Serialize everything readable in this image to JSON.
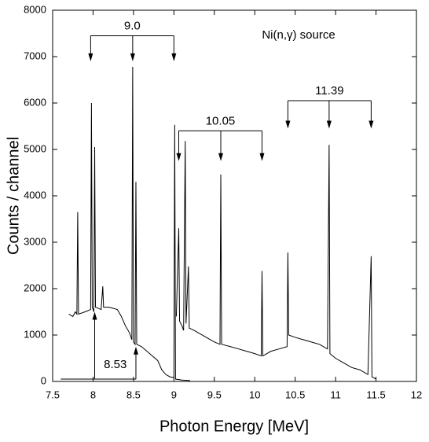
{
  "chart_data": {
    "type": "line",
    "annotation": "Ni(n,γ) source",
    "x_label": "Photon Energy [MeV]",
    "y_label": "Counts / channel",
    "xlim": [
      7.5,
      12
    ],
    "xticks": [
      7.5,
      8,
      8.5,
      9,
      9.5,
      10,
      10.5,
      11,
      11.5,
      12
    ],
    "ylim": [
      0,
      8000
    ],
    "yticks": [
      0,
      1000,
      2000,
      3000,
      4000,
      5000,
      6000,
      7000,
      8000
    ],
    "grid": false,
    "series": [
      {
        "color": "#000000",
        "x": [
          7.7,
          7.75,
          7.78,
          7.8,
          7.81,
          7.82,
          7.9,
          7.97,
          7.98,
          7.99,
          8.01,
          8.02,
          8.03,
          8.1,
          8.12,
          8.13,
          8.2,
          8.3,
          8.35,
          8.4,
          8.45,
          8.48,
          8.49,
          8.5,
          8.52,
          8.53,
          8.54,
          8.6,
          8.7,
          8.8,
          8.85,
          8.9,
          8.95,
          9.0,
          9.01,
          9.02,
          9.1,
          9.2
        ],
        "values": [
          1450,
          1400,
          1500,
          1450,
          3650,
          1450,
          1500,
          1550,
          6000,
          1600,
          1500,
          5050,
          1600,
          1550,
          2050,
          1600,
          1600,
          1550,
          1400,
          1200,
          1050,
          900,
          6780,
          850,
          800,
          4300,
          800,
          750,
          600,
          450,
          250,
          150,
          100,
          80,
          5530,
          50,
          30,
          20
        ]
      },
      {
        "color": "#000000",
        "x": [
          9.03,
          9.06,
          9.07,
          9.1,
          9.12,
          9.14,
          9.15,
          9.18,
          9.19,
          9.25,
          9.3,
          9.4,
          9.5,
          9.57,
          9.58,
          9.59,
          9.7,
          9.8,
          9.9,
          10.0,
          10.08,
          10.09,
          10.1,
          10.2,
          10.3,
          10.4,
          10.41,
          10.42,
          10.5,
          10.6,
          10.7,
          10.8,
          10.9,
          10.92,
          10.93,
          11.0,
          11.1,
          11.2,
          11.3,
          11.4,
          11.44,
          11.45,
          11.5
        ],
        "values": [
          1400,
          3300,
          1300,
          1200,
          1100,
          5180,
          1250,
          2480,
          1150,
          1100,
          1050,
          950,
          850,
          800,
          4460,
          800,
          750,
          700,
          650,
          600,
          550,
          2380,
          550,
          650,
          700,
          750,
          2780,
          1000,
          950,
          900,
          850,
          800,
          700,
          5100,
          600,
          500,
          400,
          300,
          250,
          150,
          2700,
          100,
          50
        ]
      }
    ],
    "brackets": [
      {
        "text": "9.0",
        "span": [
          7.97,
          9.0
        ],
        "level": 7450,
        "arrows": [
          7.97,
          8.49,
          9.0
        ],
        "tips": [
          6900,
          6900,
          6900
        ]
      },
      {
        "text": "10.05",
        "span": [
          9.06,
          10.09
        ],
        "level": 5400,
        "arrows": [
          9.06,
          9.58,
          10.09
        ],
        "tips": [
          4750,
          4750,
          4750
        ]
      },
      {
        "text": "11.39",
        "span": [
          10.41,
          11.44
        ],
        "level": 6050,
        "arrows": [
          10.41,
          10.92,
          11.44
        ],
        "tips": [
          5450,
          5450,
          5450
        ]
      },
      {
        "text": "8.53",
        "span": [
          7.6,
          8.53
        ],
        "level": 50,
        "arrows": [
          8.02,
          8.53
        ],
        "tips": [
          1500,
          750
        ]
      }
    ]
  }
}
